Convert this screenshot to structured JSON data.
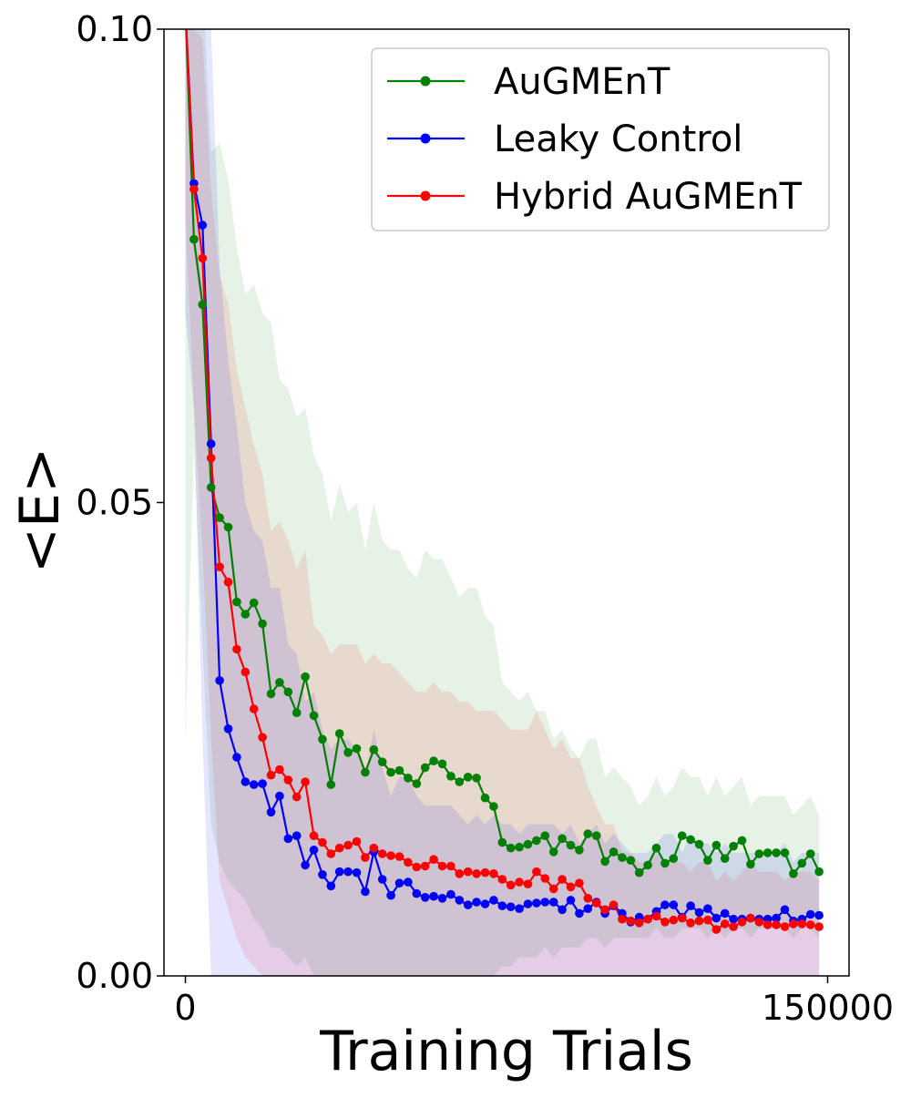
{
  "chart_data": {
    "type": "line",
    "title": "",
    "xlabel": "Training Trials",
    "ylabel": "<E>",
    "xlim": [
      -5000,
      155000
    ],
    "ylim": [
      0.0,
      0.1
    ],
    "x_ticks": [
      0,
      150000
    ],
    "x_tick_labels": [
      "0",
      "150000"
    ],
    "y_ticks": [
      0.0,
      0.05,
      0.1
    ],
    "y_tick_labels": [
      "0.00",
      "0.05",
      "0.10"
    ],
    "grid": false,
    "legend_position": "top-right",
    "x": [
      0,
      2000,
      4000,
      6000,
      8000,
      10000,
      12000,
      14000,
      16000,
      18000,
      20000,
      22000,
      24000,
      26000,
      28000,
      30000,
      32000,
      34000,
      36000,
      38000,
      40000,
      42000,
      44000,
      46000,
      48000,
      50000,
      52000,
      54000,
      56000,
      58000,
      60000,
      62000,
      64000,
      66000,
      68000,
      70000,
      72000,
      74000,
      76000,
      78000,
      80000,
      82000,
      84000,
      86000,
      88000,
      90000,
      92000,
      94000,
      96000,
      98000,
      100000,
      102000,
      104000,
      106000,
      108000,
      110000,
      112000,
      114000,
      116000,
      118000,
      120000,
      122000,
      124000,
      126000,
      128000,
      130000,
      132000,
      134000,
      136000,
      138000,
      140000,
      142000,
      144000,
      146000,
      148000
    ],
    "series": [
      {
        "name": "AuGMEnT",
        "color": "#008000",
        "values": [
          0.102,
          0.0778,
          0.0709,
          0.0516,
          0.0484,
          0.0474,
          0.0395,
          0.0382,
          0.0394,
          0.0372,
          0.0298,
          0.031,
          0.03,
          0.0278,
          0.0316,
          0.0275,
          0.025,
          0.0202,
          0.0256,
          0.0236,
          0.024,
          0.0215,
          0.0239,
          0.0226,
          0.0215,
          0.0217,
          0.0209,
          0.0203,
          0.022,
          0.0227,
          0.0224,
          0.0211,
          0.0205,
          0.021,
          0.0209,
          0.0188,
          0.0179,
          0.0141,
          0.0135,
          0.0136,
          0.0139,
          0.0143,
          0.0148,
          0.0131,
          0.0145,
          0.0138,
          0.0133,
          0.015,
          0.0148,
          0.0121,
          0.0131,
          0.0125,
          0.0122,
          0.0109,
          0.0117,
          0.0135,
          0.0119,
          0.0124,
          0.0148,
          0.0144,
          0.0139,
          0.0122,
          0.0138,
          0.0124,
          0.0137,
          0.0143,
          0.0118,
          0.0129,
          0.013,
          0.013,
          0.013,
          0.0108,
          0.0119,
          0.0129,
          0.011
        ]
      },
      {
        "name": "Leaky Control",
        "color": "#0000ff",
        "values": [
          0.102,
          0.0837,
          0.0793,
          0.0562,
          0.0312,
          0.0261,
          0.0231,
          0.0205,
          0.0202,
          0.0203,
          0.0173,
          0.019,
          0.0145,
          0.0148,
          0.0117,
          0.0133,
          0.0107,
          0.0095,
          0.011,
          0.011,
          0.0109,
          0.0089,
          0.0131,
          0.0102,
          0.0085,
          0.0098,
          0.0099,
          0.0087,
          0.0083,
          0.0084,
          0.0082,
          0.0086,
          0.008,
          0.0075,
          0.0078,
          0.0076,
          0.008,
          0.0074,
          0.0073,
          0.0071,
          0.0076,
          0.0077,
          0.0078,
          0.0078,
          0.007,
          0.008,
          0.0066,
          0.0071,
          0.0078,
          0.0066,
          0.0074,
          0.0066,
          0.0057,
          0.0062,
          0.006,
          0.0068,
          0.0075,
          0.0075,
          0.0062,
          0.0074,
          0.0067,
          0.0071,
          0.0061,
          0.0066,
          0.006,
          0.006,
          0.0061,
          0.006,
          0.006,
          0.0061,
          0.007,
          0.0058,
          0.006,
          0.0065,
          0.0064
        ]
      },
      {
        "name": "Hybrid AuGMEnT",
        "color": "#ff0000",
        "values": [
          0.102,
          0.0831,
          0.0758,
          0.0547,
          0.0432,
          0.0416,
          0.0345,
          0.0321,
          0.0282,
          0.0252,
          0.0212,
          0.0218,
          0.0207,
          0.0189,
          0.0205,
          0.0148,
          0.0141,
          0.0129,
          0.0135,
          0.0138,
          0.0142,
          0.0125,
          0.0135,
          0.0129,
          0.0127,
          0.0126,
          0.012,
          0.0115,
          0.0116,
          0.0123,
          0.0116,
          0.0116,
          0.0108,
          0.011,
          0.0108,
          0.0109,
          0.0108,
          0.0102,
          0.0096,
          0.0099,
          0.0097,
          0.011,
          0.0103,
          0.0092,
          0.0102,
          0.0094,
          0.0098,
          0.0082,
          0.0077,
          0.007,
          0.0075,
          0.006,
          0.0058,
          0.0056,
          0.006,
          0.0063,
          0.0057,
          0.0059,
          0.0061,
          0.0056,
          0.0058,
          0.0059,
          0.0049,
          0.0055,
          0.0052,
          0.0057,
          0.0061,
          0.0057,
          0.0054,
          0.0054,
          0.0052,
          0.0055,
          0.0055,
          0.0054,
          0.0052
        ]
      }
    ],
    "bands": [
      {
        "series": "AuGMEnT",
        "color": "#008000",
        "opacity": 0.1,
        "lower": [
          0.025,
          0.056,
          0.035,
          0.016,
          0.012,
          0.01,
          0.009,
          0.008,
          0.006,
          0.005,
          0.003,
          0.003,
          0.002,
          0.001,
          0.002,
          0.0,
          0.0,
          0.0,
          0.0,
          0.0,
          0.0,
          0.0,
          0.0,
          0.0,
          0.0,
          0.0,
          0.0,
          0.0,
          0.0,
          0.0,
          0.0,
          0.0,
          0.0,
          0.0,
          0.0,
          0.0,
          0.0,
          0.001,
          0.001,
          0.002,
          0.002,
          0.002,
          0.003,
          0.002,
          0.003,
          0.003,
          0.003,
          0.004,
          0.004,
          0.003,
          0.004,
          0.004,
          0.004,
          0.004,
          0.004,
          0.005,
          0.004,
          0.004,
          0.005,
          0.005,
          0.005,
          0.004,
          0.005,
          0.004,
          0.005,
          0.005,
          0.004,
          0.005,
          0.005,
          0.005,
          0.005,
          0.004,
          0.005,
          0.005,
          0.004
        ],
        "upper": [
          0.105,
          0.105,
          0.105,
          0.087,
          0.088,
          0.084,
          0.077,
          0.072,
          0.073,
          0.07,
          0.069,
          0.063,
          0.062,
          0.059,
          0.06,
          0.055,
          0.053,
          0.048,
          0.052,
          0.049,
          0.05,
          0.045,
          0.05,
          0.046,
          0.045,
          0.045,
          0.043,
          0.042,
          0.045,
          0.044,
          0.044,
          0.042,
          0.04,
          0.041,
          0.041,
          0.038,
          0.037,
          0.031,
          0.03,
          0.029,
          0.03,
          0.028,
          0.028,
          0.025,
          0.026,
          0.024,
          0.023,
          0.025,
          0.025,
          0.021,
          0.022,
          0.021,
          0.02,
          0.018,
          0.019,
          0.021,
          0.019,
          0.02,
          0.022,
          0.021,
          0.021,
          0.019,
          0.021,
          0.019,
          0.02,
          0.021,
          0.018,
          0.019,
          0.019,
          0.019,
          0.019,
          0.017,
          0.018,
          0.019,
          0.017
        ]
      },
      {
        "series": "Hybrid AuGMEnT",
        "color": "#ff0000",
        "opacity": 0.1,
        "lower": [
          0.08,
          0.06,
          0.045,
          0.025,
          0.01,
          0.007,
          0.004,
          0.002,
          0.001,
          0.0,
          0.0,
          0.0,
          0.0,
          0.0,
          0.0,
          0.0,
          0.0,
          0.0,
          0.0,
          0.0,
          0.0,
          0.0,
          0.0,
          0.0,
          0.0,
          0.0,
          0.0,
          0.0,
          0.0,
          0.0,
          0.0,
          0.0,
          0.0,
          0.0,
          0.0,
          0.0,
          0.0,
          0.0,
          0.0,
          0.0,
          0.0,
          0.0,
          0.0,
          0.0,
          0.0,
          0.0,
          0.0,
          0.0,
          0.0,
          0.0,
          0.0,
          0.0,
          0.0,
          0.0,
          0.0,
          0.0,
          0.0,
          0.0,
          0.0,
          0.0,
          0.0,
          0.0,
          0.0,
          0.0,
          0.0,
          0.0,
          0.0,
          0.0,
          0.0,
          0.0,
          0.0,
          0.0,
          0.0,
          0.0,
          0.0
        ],
        "upper": [
          0.105,
          0.1,
          0.099,
          0.083,
          0.074,
          0.071,
          0.064,
          0.06,
          0.056,
          0.053,
          0.047,
          0.048,
          0.046,
          0.043,
          0.045,
          0.037,
          0.036,
          0.034,
          0.035,
          0.035,
          0.035,
          0.033,
          0.034,
          0.033,
          0.033,
          0.032,
          0.031,
          0.03,
          0.03,
          0.031,
          0.03,
          0.03,
          0.029,
          0.029,
          0.028,
          0.028,
          0.028,
          0.027,
          0.026,
          0.026,
          0.026,
          0.028,
          0.026,
          0.024,
          0.025,
          0.023,
          0.023,
          0.02,
          0.018,
          0.016,
          0.016,
          0.013,
          0.013,
          0.012,
          0.012,
          0.013,
          0.012,
          0.012,
          0.012,
          0.011,
          0.012,
          0.012,
          0.01,
          0.011,
          0.01,
          0.011,
          0.012,
          0.011,
          0.011,
          0.011,
          0.01,
          0.011,
          0.011,
          0.011,
          0.01
        ]
      },
      {
        "series": "Leaky Control",
        "color": "#0000ff",
        "opacity": 0.1,
        "lower": [
          0.07,
          0.06,
          0.025,
          0.0,
          0.0,
          0.0,
          0.0,
          0.0,
          0.0,
          0.0,
          0.0,
          0.0,
          0.0,
          0.0,
          0.0,
          0.0,
          0.0,
          0.0,
          0.0,
          0.0,
          0.0,
          0.0,
          0.0,
          0.0,
          0.0,
          0.0,
          0.0,
          0.0,
          0.0,
          0.0,
          0.0,
          0.0,
          0.0,
          0.0,
          0.0,
          0.0,
          0.0,
          0.0,
          0.0,
          0.0,
          0.0,
          0.0,
          0.0,
          0.0,
          0.0,
          0.0,
          0.0,
          0.0,
          0.0,
          0.0,
          0.0,
          0.0,
          0.0,
          0.0,
          0.0,
          0.0,
          0.0,
          0.0,
          0.0,
          0.0,
          0.0,
          0.0,
          0.0,
          0.0,
          0.0,
          0.0,
          0.0,
          0.0,
          0.0,
          0.0,
          0.0,
          0.0,
          0.0,
          0.0,
          0.0
        ],
        "upper": [
          0.105,
          0.105,
          0.105,
          0.1,
          0.075,
          0.065,
          0.058,
          0.05,
          0.047,
          0.046,
          0.041,
          0.041,
          0.035,
          0.034,
          0.029,
          0.03,
          0.026,
          0.024,
          0.025,
          0.025,
          0.024,
          0.021,
          0.026,
          0.022,
          0.019,
          0.021,
          0.021,
          0.019,
          0.018,
          0.018,
          0.018,
          0.018,
          0.017,
          0.016,
          0.017,
          0.016,
          0.017,
          0.016,
          0.016,
          0.015,
          0.016,
          0.016,
          0.016,
          0.016,
          0.015,
          0.016,
          0.014,
          0.015,
          0.016,
          0.014,
          0.015,
          0.014,
          0.013,
          0.013,
          0.013,
          0.014,
          0.015,
          0.015,
          0.013,
          0.015,
          0.014,
          0.014,
          0.013,
          0.014,
          0.013,
          0.013,
          0.013,
          0.013,
          0.013,
          0.013,
          0.014,
          0.012,
          0.013,
          0.013,
          0.013
        ]
      }
    ]
  }
}
